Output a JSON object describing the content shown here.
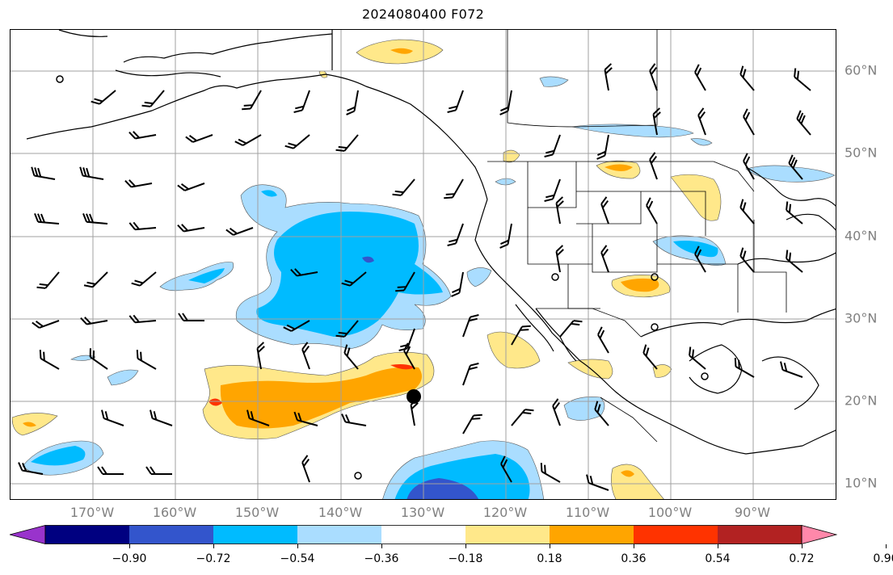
{
  "title": "2024080400 F072",
  "lon_labels": [
    "170°W",
    "160°W",
    "150°W",
    "140°W",
    "130°W",
    "120°W",
    "110°W",
    "100°W",
    "90°W"
  ],
  "lat_labels": [
    "60°N",
    "50°N",
    "40°N",
    "30°N",
    "20°N",
    "10°N"
  ],
  "colorbar": {
    "ticks": [
      "−0.90",
      "−0.72",
      "−0.54",
      "−0.36",
      "−0.18",
      "0.18",
      "0.36",
      "0.54",
      "0.72",
      "0.90"
    ],
    "colors": [
      "#9933cc",
      "#000080",
      "#3355cc",
      "#00bbff",
      "#aaddff",
      "#ffffff",
      "#ffe88a",
      "#ffa500",
      "#ff3300",
      "#b22222",
      "#ff88aa"
    ]
  },
  "map": {
    "lon_range": [
      -180,
      -80
    ],
    "lat_range": [
      8,
      65
    ],
    "storm_center": {
      "lon": -130.5,
      "lat": 20.5
    }
  }
}
